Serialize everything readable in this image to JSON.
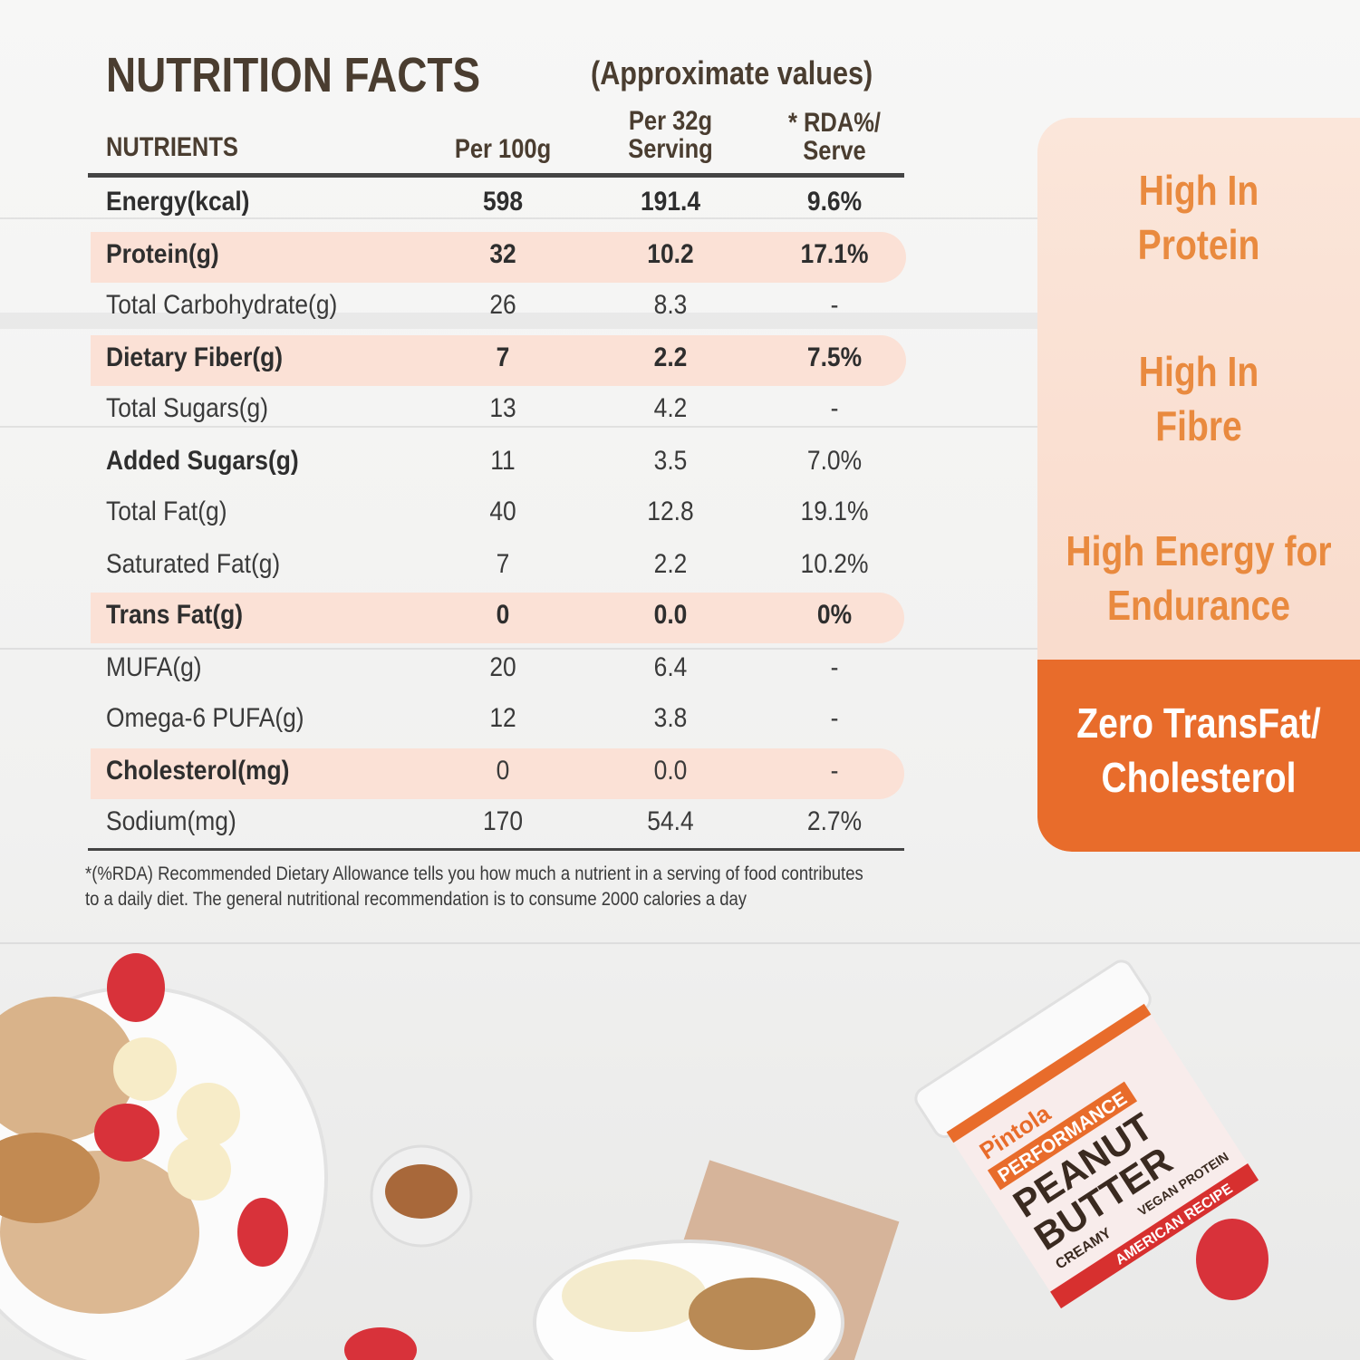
{
  "title": "NUTRITION FACTS",
  "subtitle": "(Approximate values)",
  "headers": {
    "nutrients": "NUTRIENTS",
    "per100": "Per 100g",
    "serving_line1": "Per 32g",
    "serving_line2": "Serving",
    "rda_line1": "* RDA%/",
    "rda_line2": "Serve"
  },
  "rows": [
    {
      "label": "Energy(kcal)",
      "per100": "598",
      "serving": "191.4",
      "rda": "9.6%"
    },
    {
      "label": "Protein(g)",
      "per100": "32",
      "serving": "10.2",
      "rda": "17.1%"
    },
    {
      "label": "Total Carbohydrate(g)",
      "per100": "26",
      "serving": "8.3",
      "rda": "-"
    },
    {
      "label": "Dietary Fiber(g)",
      "per100": "7",
      "serving": "2.2",
      "rda": "7.5%"
    },
    {
      "label": "Total Sugars(g)",
      "per100": "13",
      "serving": "4.2",
      "rda": "-"
    },
    {
      "label": "Added Sugars(g)",
      "per100": "11",
      "serving": "3.5",
      "rda": "7.0%"
    },
    {
      "label": "Total Fat(g)",
      "per100": "40",
      "serving": "12.8",
      "rda": "19.1%"
    },
    {
      "label": "Saturated Fat(g)",
      "per100": "7",
      "serving": "2.2",
      "rda": "10.2%"
    },
    {
      "label": "Trans Fat(g)",
      "per100": "0",
      "serving": "0.0",
      "rda": "0%"
    },
    {
      "label": "MUFA(g)",
      "per100": "20",
      "serving": "6.4",
      "rda": "-"
    },
    {
      "label": "Omega-6 PUFA(g)",
      "per100": "12",
      "serving": "3.8",
      "rda": "-"
    },
    {
      "label": "Cholesterol(mg)",
      "per100": "0",
      "serving": "0.0",
      "rda": "-"
    },
    {
      "label": "Sodium(mg)",
      "per100": "170",
      "serving": "54.4",
      "rda": "2.7%"
    }
  ],
  "footnote_line1": "*(%RDA) Recommended Dietary Allowance tells you how much a nutrient in a serving of food contributes",
  "footnote_line2": "to a daily diet. The general nutritional recommendation is to consume 2000 calories a day",
  "claims": [
    {
      "line1": "High In",
      "line2": "Protein"
    },
    {
      "line1": "High In",
      "line2": "Fibre"
    },
    {
      "line1": "High Energy for",
      "line2": "Endurance"
    },
    {
      "line1": "Zero TransFat/",
      "line2": "Cholesterol"
    }
  ],
  "product": {
    "brand": "Pintola",
    "line": "PERFORMANCE",
    "name1": "PEANUT",
    "name2": "BUTTER",
    "variant": "CREAMY",
    "badge": "AMERICAN RECIPE",
    "vegan": "VEGAN PROTEIN"
  },
  "colors": {
    "accent": "#e86c2b",
    "highlight": "#fbe1d6",
    "claim_text": "#e98a3f",
    "title": "#4a3d30"
  }
}
